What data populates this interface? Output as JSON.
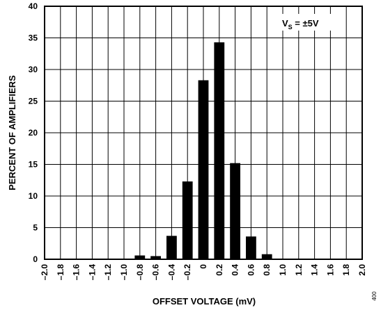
{
  "chart_data": {
    "type": "bar",
    "x_tick_labels": [
      "–2.0",
      "–1.8",
      "–1.6",
      "–1.4",
      "–1.2",
      "–1.0",
      "–0.8",
      "–0.6",
      "–0.4",
      "–0.2",
      "0",
      "0.2",
      "0.4",
      "0.6",
      "0.8",
      "1.0",
      "1.2",
      "1.4",
      "1.6",
      "1.8",
      "2.0"
    ],
    "categories": [
      -0.8,
      -0.6,
      -0.4,
      -0.2,
      0,
      0.2,
      0.4,
      0.6,
      0.8,
      1.0,
      1.2
    ],
    "values": [
      0.6,
      0.5,
      3.7,
      12.3,
      28.3,
      34.3,
      15.2,
      3.6,
      0.8,
      0.1,
      0.1
    ],
    "xlim": [
      -2.0,
      2.0
    ],
    "ylim": [
      0,
      40
    ],
    "y_ticks": [
      0,
      5,
      10,
      15,
      20,
      25,
      30,
      35,
      40
    ],
    "xlabel": "OFFSET VOLTAGE (mV)",
    "ylabel": "PERCENT OF AMPLIFIERS",
    "legend": {
      "main": "V",
      "sub": "S",
      "rest": " = ±5V"
    },
    "grid": true,
    "figure_number": "400"
  }
}
